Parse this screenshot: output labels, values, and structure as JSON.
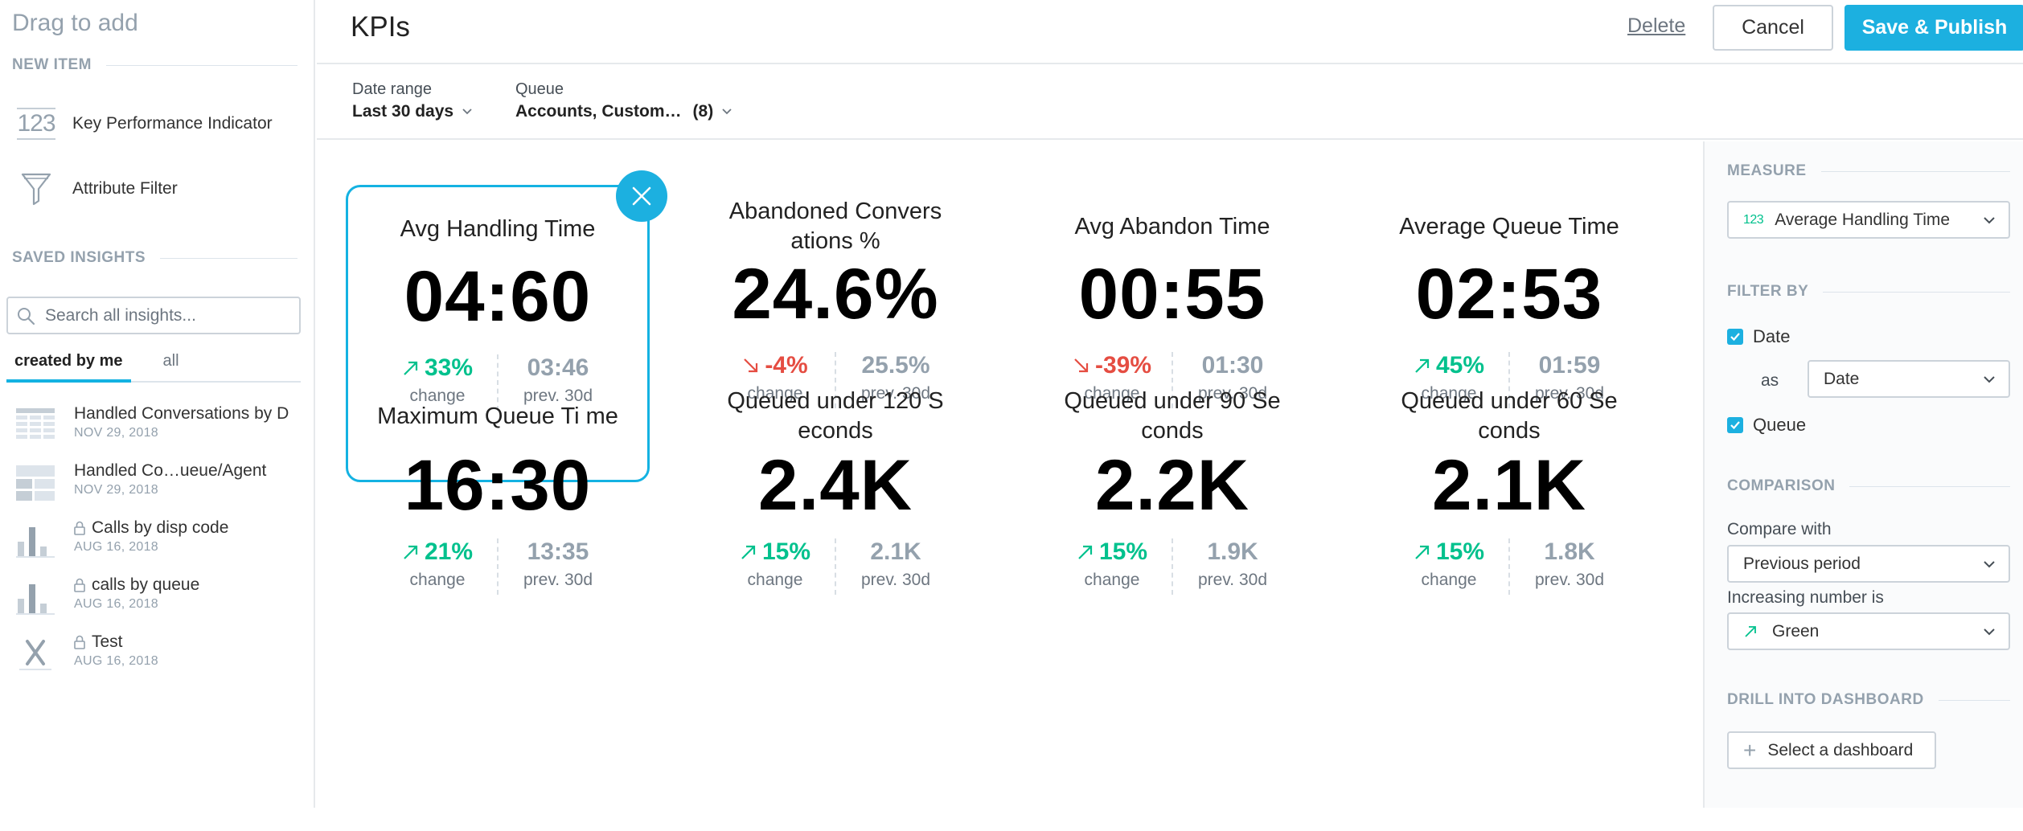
{
  "sidebar": {
    "drag_title": "Drag to add",
    "new_item_label": "NEW ITEM",
    "new_items": [
      {
        "label": "Key Performance Indicator",
        "icon": "kpi-123-icon",
        "icon_text": "123"
      },
      {
        "label": "Attribute Filter",
        "icon": "funnel-icon"
      }
    ],
    "saved_insights_label": "SAVED INSIGHTS",
    "search_placeholder": "Search all insights...",
    "tabs": [
      {
        "label": "created by me",
        "active": true
      },
      {
        "label": "all",
        "active": false
      }
    ],
    "insights": [
      {
        "name": "Handled Conversations by D",
        "date": "NOV 29, 2018",
        "icon": "table-icon",
        "locked": false
      },
      {
        "name": "Handled Co…ueue/Agent",
        "date": "NOV 29, 2018",
        "icon": "pivot-table-icon",
        "locked": false
      },
      {
        "name": "Calls by disp code",
        "date": "AUG 16, 2018",
        "icon": "bar-chart-icon",
        "locked": true
      },
      {
        "name": "calls by queue",
        "date": "AUG 16, 2018",
        "icon": "bar-chart-icon",
        "locked": true
      },
      {
        "name": "Test",
        "date": "AUG 16, 2018",
        "icon": "x-icon",
        "locked": true
      }
    ]
  },
  "header": {
    "title": "KPIs",
    "delete_label": "Delete",
    "cancel_label": "Cancel",
    "publish_label": "Save & Publish"
  },
  "filters": {
    "date_range": {
      "label": "Date range",
      "value": "Last 30 days"
    },
    "queue": {
      "label": "Queue",
      "value": "Accounts, Custom…",
      "count": "(8)"
    }
  },
  "kpis": [
    {
      "title": "Avg Handling Time",
      "value": "04:60",
      "change": "33%",
      "direction": "up",
      "change_label": "change",
      "prev": "03:46",
      "prev_label": "prev. 30d"
    },
    {
      "title": "Abandoned Convers ations %",
      "value": "24.6%",
      "change": "-4%",
      "direction": "down",
      "change_label": "change",
      "prev": "25.5%",
      "prev_label": "prev. 30d"
    },
    {
      "title": "Avg Abandon Time",
      "value": "00:55",
      "change": "-39%",
      "direction": "down",
      "change_label": "change",
      "prev": "01:30",
      "prev_label": "prev. 30d"
    },
    {
      "title": "Average Queue Time",
      "value": "02:53",
      "change": "45%",
      "direction": "up",
      "change_label": "change",
      "prev": "01:59",
      "prev_label": "prev. 30d"
    },
    {
      "title": "Maximum Queue Ti me",
      "value": "16:30",
      "change": "21%",
      "direction": "up",
      "change_label": "change",
      "prev": "13:35",
      "prev_label": "prev. 30d"
    },
    {
      "title": "Queued under 120 S econds",
      "value": "2.4K",
      "change": "15%",
      "direction": "up",
      "change_label": "change",
      "prev": "2.1K",
      "prev_label": "prev. 30d"
    },
    {
      "title": "Queued under 90 Se conds",
      "value": "2.2K",
      "change": "15%",
      "direction": "up",
      "change_label": "change",
      "prev": "1.9K",
      "prev_label": "prev. 30d"
    },
    {
      "title": "Queued under 60 Se conds",
      "value": "2.1K",
      "change": "15%",
      "direction": "up",
      "change_label": "change",
      "prev": "1.8K",
      "prev_label": "prev. 30d"
    }
  ],
  "config": {
    "measure_label": "MEASURE",
    "measure_icon_text": "123",
    "measure_value": "Average Handling Time",
    "filter_by_label": "FILTER BY",
    "filter_date_label": "Date",
    "as_label": "as",
    "as_value": "Date",
    "filter_queue_label": "Queue",
    "comparison_label": "COMPARISON",
    "compare_with_label": "Compare with",
    "compare_with_value": "Previous period",
    "increasing_label": "Increasing number is",
    "increasing_value": "Green",
    "drill_label": "DRILL INTO DASHBOARD",
    "drill_button": "Select a dashboard",
    "drill_plus": "+"
  },
  "colors": {
    "accent": "#1cb0e0",
    "positive": "#00c18d",
    "negative": "#e54d42",
    "muted": "#94a1ad"
  }
}
